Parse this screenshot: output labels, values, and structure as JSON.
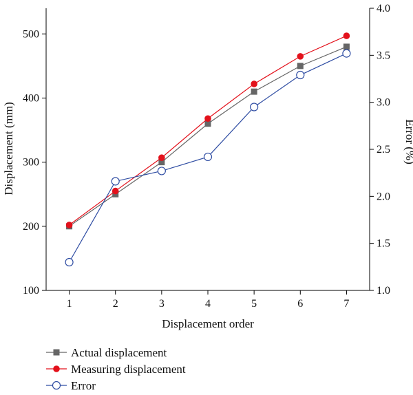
{
  "chart_data": {
    "type": "line",
    "title": "",
    "xlabel": "Displacement order",
    "ylabel": "Displacement (mm)",
    "y2label": "Error (%)",
    "x": [
      1,
      2,
      3,
      4,
      5,
      6,
      7
    ],
    "x_ticks": [
      "1",
      "2",
      "3",
      "4",
      "5",
      "6",
      "7"
    ],
    "xlim": [
      0.5,
      7.5
    ],
    "ylim": [
      100,
      540
    ],
    "y_ticks": [
      "100",
      "200",
      "300",
      "400",
      "500"
    ],
    "y2lim": [
      1.0,
      4.0
    ],
    "y2_ticks": [
      "1.0",
      "1.5",
      "2.0",
      "2.5",
      "3.0",
      "3.5",
      "4.0"
    ],
    "grid": false,
    "legend_position": "bottom-left",
    "series": [
      {
        "name": "Actual displacement",
        "axis": "left",
        "color": "#666666",
        "marker": "filled-square",
        "values": [
          200,
          250,
          300,
          360,
          410,
          450,
          480
        ]
      },
      {
        "name": "Measuring displacement",
        "axis": "left",
        "color": "#e3111b",
        "marker": "filled-circle",
        "values": [
          202,
          255,
          307,
          368,
          422,
          465,
          497
        ]
      },
      {
        "name": "Error",
        "axis": "right",
        "color": "#2f4da3",
        "marker": "open-circle",
        "values": [
          1.3,
          2.16,
          2.27,
          2.42,
          2.95,
          3.29,
          3.52
        ]
      }
    ]
  }
}
